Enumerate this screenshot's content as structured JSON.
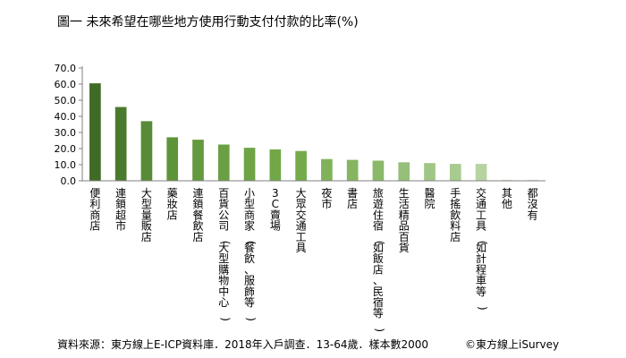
{
  "chart_data": {
    "type": "bar",
    "title": "圖一 未來希望在哪些地方使用行動支付付款的比率(%)",
    "xlabel": "",
    "ylabel": "",
    "ylim": [
      0,
      70
    ],
    "yticks": [
      "0.0",
      "10.0",
      "20.0",
      "30.0",
      "40.0",
      "50.0",
      "60.0",
      "70.0"
    ],
    "grid": false,
    "legend": "none",
    "categories": [
      "便利商店",
      "連鎖超市",
      "大型量販店",
      "藥妝店",
      "連鎖餐飲店",
      "百貨公司(大型購物中心)",
      "小型商家(餐飲、服飾等)",
      "3C賣場",
      "大眾交通工具",
      "夜市",
      "書店",
      "旅遊住宿(如飯店、民宿等)",
      "生活精品百貨",
      "醫院",
      "手搖飲料店",
      "交通工具(如計程車等)",
      "其他",
      "都沒有"
    ],
    "values": [
      60.5,
      45.8,
      37.0,
      27.0,
      25.5,
      22.5,
      20.5,
      19.5,
      18.5,
      13.5,
      13.0,
      12.5,
      11.5,
      11.0,
      10.5,
      10.5,
      0.5,
      0.5
    ],
    "colors": [
      "#3f6b26",
      "#4a7a2e",
      "#578b37",
      "#5e9439",
      "#64993e",
      "#6aa043",
      "#6fa446",
      "#72a748",
      "#75aa4a",
      "#80b25a",
      "#85b561",
      "#8bb96a",
      "#96c07a",
      "#a0c685",
      "#a8cb8f",
      "#b6d4a0",
      "#c4ddb3",
      "#c9e0ba"
    ]
  },
  "footer": {
    "source": "資料來源：東方線上E-ICP資料庫．2018年入戶調查．13-64歲．樣本數2000",
    "copyright": "©東方線上iSurvey"
  }
}
